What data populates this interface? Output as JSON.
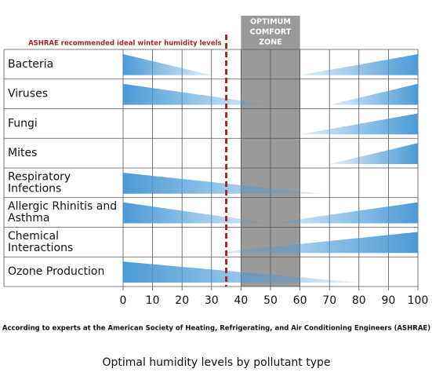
{
  "chart_data": {
    "type": "wedge",
    "title": "Optimal humidity levels by pollutant type",
    "note": "According to experts at the American Society of Heating, Refrigerating, and Air Conditioning Engineers (ASHRAE)",
    "categories": [
      [
        "Bacteria"
      ],
      [
        "Viruses"
      ],
      [
        "Fungi"
      ],
      [
        "Mites"
      ],
      [
        "Respiratory",
        "Infections"
      ],
      [
        "Allergic Rhinitis and",
        "Asthma"
      ],
      [
        "Chemical",
        "Interactions"
      ],
      [
        "Ozone Production"
      ]
    ],
    "decrease_to": [
      30,
      50,
      null,
      null,
      67,
      50,
      null,
      80
    ],
    "increase_from": [
      60,
      70,
      60,
      70,
      null,
      50,
      30,
      null
    ],
    "color": "#4a9ad6",
    "xlim": [
      0,
      100
    ],
    "xticks": [
      0,
      10,
      20,
      30,
      40,
      50,
      60,
      70,
      80,
      90,
      100
    ],
    "grid": true,
    "comfort_zone": {
      "label": [
        "OPTIMUM",
        "COMFORT",
        "ZONE"
      ],
      "range": [
        40,
        60
      ],
      "color": "#9a9a9a"
    },
    "reference_line": {
      "label": "ASHRAE recommended ideal winter humidity levels",
      "value": 35,
      "color": "#a3262a"
    }
  }
}
